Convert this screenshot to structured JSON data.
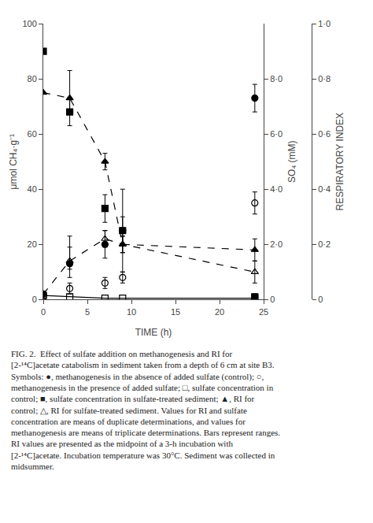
{
  "chart_data": {
    "type": "scatter",
    "xlabel": "TIME (h)",
    "ylabel": "μmol CH₄·g⁻¹",
    "y2label": "SO₄ (mM)",
    "y3label": "RESPIRATORY INDEX",
    "xlim": [
      0,
      25
    ],
    "ylim": [
      0,
      100
    ],
    "y2lim": [
      0,
      10
    ],
    "y3lim": [
      0,
      1.0
    ],
    "xticks": [
      0,
      5,
      10,
      15,
      20,
      25
    ],
    "yticks": [
      0,
      20,
      40,
      60,
      80,
      100
    ],
    "y2ticks": [
      0,
      {
        "value": 2.0,
        "label": "2·0"
      },
      {
        "value": 4.0,
        "label": "4·0"
      },
      {
        "value": 6.0,
        "label": "6·0"
      },
      {
        "value": 8.0,
        "label": "8·0"
      }
    ],
    "y3ticks": [
      0,
      {
        "value": 0.2,
        "label": "0·2"
      },
      {
        "value": 0.4,
        "label": "0·4"
      },
      {
        "value": 0.6,
        "label": "0·6"
      },
      {
        "value": 0.8,
        "label": "0·8"
      },
      {
        "value": 1.0,
        "label": "1·0"
      }
    ],
    "grid": false,
    "caption": "FIG. 2.  Effect of sulfate addition on methanogenesis and RI for [2-¹⁴C]acetate catabolism in sediment taken from a depth of 6 cm at site B3. Symbols: ●, methanogenesis in the absence of added sulfate (control); ○, methanogenesis in the presence of added sulfate; □, sulfate concentration in control; ■, sulfate concentration in sulfate-treated sediment; ▲, RI for control; △, RI for sulfate-treated sediment. Values for RI and sulfate concentration are means of duplicate determinations, and values for methanogenesis are means of triplicate determinations. Bars represent ranges. RI values are presented as the midpoint of a 3-h incubation with [2-¹⁴C]acetate. Incubation temperature was 30°C. Sediment was collected in midsummer.",
    "series": [
      {
        "marker": "circle",
        "color": "black",
        "line_style": "none",
        "x": [
          0,
          3,
          7,
          9,
          24
        ],
        "values": [
          2,
          13,
          20,
          25,
          73
        ],
        "error_lo": [
          1,
          5,
          5,
          5,
          5
        ],
        "error_hi": [
          1,
          10,
          5,
          5,
          5
        ]
      },
      {
        "marker": "circle-open",
        "color": "black",
        "line_style": "none",
        "x": [
          0,
          3,
          7,
          9,
          24
        ],
        "values": [
          1,
          4,
          6,
          8,
          35
        ],
        "error_lo": [
          0.5,
          2,
          2,
          2,
          4
        ],
        "error_hi": [
          0.5,
          2,
          2,
          2,
          4
        ]
      },
      {
        "marker": "square-open",
        "color": "black",
        "line_style": "solid",
        "axis": "y2",
        "x": [
          0,
          3,
          7,
          9,
          24
        ],
        "values": [
          0.15,
          0.1,
          0.05,
          0.05,
          0.05
        ]
      },
      {
        "marker": "square",
        "color": "black",
        "line_style": "none",
        "axis": "y2",
        "x": [
          0,
          3,
          7,
          9,
          24
        ],
        "values": [
          9.0,
          6.8,
          3.3,
          2.5,
          0.1
        ],
        "error_lo": [
          0,
          0.5,
          0.5,
          1.5,
          0.1
        ],
        "error_hi": [
          0,
          0.5,
          0.5,
          1.5,
          0.1
        ]
      },
      {
        "marker": "triangle-up",
        "color": "black",
        "line_style": "dashed",
        "axis": "y3",
        "x": [
          0,
          3,
          7,
          9,
          24
        ],
        "values": [
          0.75,
          0.73,
          0.5,
          0.2,
          0.18
        ],
        "error_lo": [
          0,
          0.05,
          0.03,
          0.03,
          0.04
        ],
        "error_hi": [
          0,
          0.1,
          0.03,
          0.03,
          0.04
        ]
      },
      {
        "marker": "triangle-up-open",
        "color": "black",
        "line_style": "dashed",
        "axis": "y3",
        "x": [
          0,
          3,
          7,
          9,
          24
        ],
        "values": [
          0.02,
          0.14,
          0.22,
          0.2,
          0.1
        ],
        "error_lo": [
          0,
          0.03,
          0.03,
          0.03,
          0.04
        ],
        "error_hi": [
          0,
          0.05,
          0.03,
          0.03,
          0.04
        ]
      }
    ]
  }
}
